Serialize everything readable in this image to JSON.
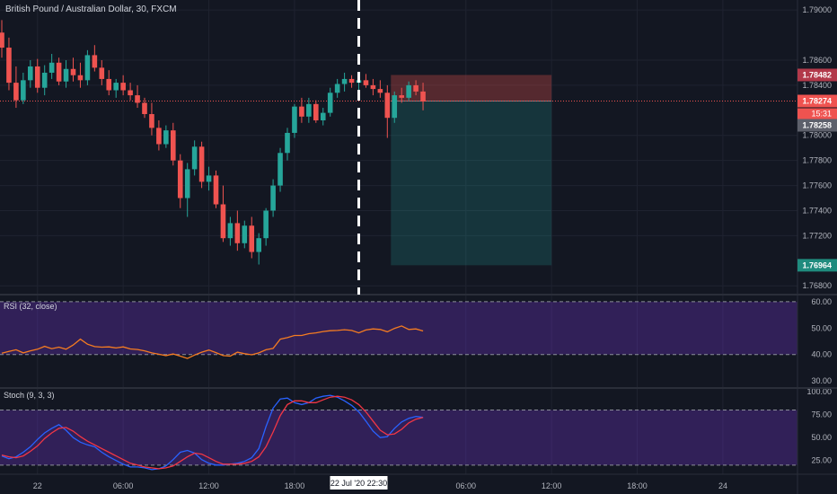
{
  "chart_data": {
    "type": "candlestick",
    "title": "British Pound / Australian Dollar, 30, FXCM",
    "symbol": "British Pound / Australian Dollar",
    "interval": "30",
    "exchange": "FXCM",
    "price_axis": {
      "ticks": [
        "1.79000",
        "1.78600",
        "1.78400",
        "1.78000",
        "1.77800",
        "1.77600",
        "1.77400",
        "1.77200",
        "1.76800"
      ],
      "range": [
        1.7673,
        1.7908
      ]
    },
    "time_axis": {
      "ticks": [
        {
          "label": "22",
          "slot": 5
        },
        {
          "label": "06:00",
          "slot": 17
        },
        {
          "label": "12:00",
          "slot": 29
        },
        {
          "label": "18:00",
          "slot": 41
        },
        {
          "label": "06:00",
          "slot": 65
        },
        {
          "label": "12:00",
          "slot": 77
        },
        {
          "label": "18:00",
          "slot": 89
        },
        {
          "label": "24",
          "slot": 101
        }
      ],
      "cursor_label": "22 Jul '20   22:30",
      "cursor_slot": 50
    },
    "candles": [
      [
        1.7882,
        1.7892,
        1.7862,
        1.787
      ],
      [
        1.787,
        1.7878,
        1.7836,
        1.7842
      ],
      [
        1.7842,
        1.7855,
        1.7822,
        1.7828
      ],
      [
        1.7828,
        1.785,
        1.7825,
        1.7844
      ],
      [
        1.7844,
        1.786,
        1.7838,
        1.7855
      ],
      [
        1.7855,
        1.7861,
        1.7834,
        1.7838
      ],
      [
        1.7838,
        1.7856,
        1.7832,
        1.785
      ],
      [
        1.785,
        1.7865,
        1.7845,
        1.7858
      ],
      [
        1.7858,
        1.7862,
        1.784,
        1.7843
      ],
      [
        1.7843,
        1.786,
        1.7838,
        1.7853
      ],
      [
        1.7853,
        1.7862,
        1.7843,
        1.7848
      ],
      [
        1.7848,
        1.7858,
        1.7838,
        1.7844
      ],
      [
        1.7844,
        1.7868,
        1.784,
        1.7864
      ],
      [
        1.7864,
        1.7872,
        1.7851,
        1.7854
      ],
      [
        1.7854,
        1.786,
        1.784,
        1.7845
      ],
      [
        1.7845,
        1.7852,
        1.7832,
        1.7836
      ],
      [
        1.7836,
        1.7845,
        1.783,
        1.7842
      ],
      [
        1.7842,
        1.7848,
        1.7832,
        1.7836
      ],
      [
        1.7836,
        1.7842,
        1.7828,
        1.7832
      ],
      [
        1.7832,
        1.784,
        1.7822,
        1.7826
      ],
      [
        1.7826,
        1.783,
        1.7814,
        1.7817
      ],
      [
        1.7817,
        1.7826,
        1.78,
        1.7806
      ],
      [
        1.7806,
        1.7812,
        1.7788,
        1.7793
      ],
      [
        1.7793,
        1.7808,
        1.779,
        1.7804
      ],
      [
        1.7804,
        1.781,
        1.7776,
        1.778
      ],
      [
        1.778,
        1.7785,
        1.7742,
        1.775
      ],
      [
        1.775,
        1.7778,
        1.7735,
        1.7773
      ],
      [
        1.7773,
        1.7796,
        1.7768,
        1.7791
      ],
      [
        1.7791,
        1.7795,
        1.7758,
        1.7763
      ],
      [
        1.7763,
        1.7775,
        1.7756,
        1.7768
      ],
      [
        1.7768,
        1.7772,
        1.7742,
        1.7745
      ],
      [
        1.7745,
        1.776,
        1.7715,
        1.7718
      ],
      [
        1.7718,
        1.7735,
        1.7712,
        1.773
      ],
      [
        1.773,
        1.774,
        1.7708,
        1.7714
      ],
      [
        1.7714,
        1.7732,
        1.771,
        1.7728
      ],
      [
        1.7728,
        1.7735,
        1.7702,
        1.7707
      ],
      [
        1.7707,
        1.7722,
        1.7697,
        1.7718
      ],
      [
        1.7718,
        1.7742,
        1.7712,
        1.774
      ],
      [
        1.774,
        1.7765,
        1.7735,
        1.776
      ],
      [
        1.776,
        1.779,
        1.7755,
        1.7786
      ],
      [
        1.7786,
        1.7806,
        1.778,
        1.7802
      ],
      [
        1.7802,
        1.7825,
        1.7798,
        1.7823
      ],
      [
        1.7823,
        1.783,
        1.781,
        1.7815
      ],
      [
        1.7815,
        1.783,
        1.781,
        1.7825
      ],
      [
        1.7825,
        1.7828,
        1.781,
        1.7812
      ],
      [
        1.7812,
        1.7822,
        1.7808,
        1.7818
      ],
      [
        1.7818,
        1.7838,
        1.7815,
        1.7834
      ],
      [
        1.7834,
        1.7845,
        1.783,
        1.7841
      ],
      [
        1.7841,
        1.785,
        1.7835,
        1.7845
      ],
      [
        1.7845,
        1.7848,
        1.7838,
        1.7842
      ],
      [
        1.7842,
        1.7848,
        1.7836,
        1.7844
      ],
      [
        1.7844,
        1.7849,
        1.7838,
        1.784
      ],
      [
        1.784,
        1.7845,
        1.7832,
        1.7837
      ],
      [
        1.7837,
        1.7844,
        1.783,
        1.7834
      ],
      [
        1.7834,
        1.784,
        1.7798,
        1.7814
      ],
      [
        1.7814,
        1.7835,
        1.781,
        1.7832
      ],
      [
        1.7832,
        1.7838,
        1.7826,
        1.783
      ],
      [
        1.783,
        1.7843,
        1.7828,
        1.784
      ],
      [
        1.784,
        1.7844,
        1.7832,
        1.7835
      ],
      [
        1.7835,
        1.7842,
        1.782,
        1.7827
      ]
    ],
    "last_price": "1.78274",
    "countdown": "15:31",
    "labels": {
      "stop": "1.78482",
      "target": "1.76964",
      "crosshair": "1.78258"
    },
    "position": {
      "type": "short",
      "entry": 1.78274,
      "stop": 1.78482,
      "target": 1.76964,
      "from_slot": 54.5,
      "to_slot": 77
    },
    "rsi": {
      "label": "RSI (32, close)",
      "ticks": [
        "60.00",
        "50.00",
        "40.00",
        "30.00"
      ],
      "range": [
        28,
        62
      ],
      "bands": [
        40,
        60
      ],
      "values": [
        40.5,
        41.2,
        41.8,
        40.6,
        41.4,
        42.0,
        43.1,
        42.2,
        42.8,
        42.0,
        43.6,
        45.8,
        43.9,
        43.0,
        42.8,
        42.9,
        42.5,
        42.9,
        42.1,
        41.9,
        41.4,
        40.6,
        40.1,
        39.6,
        40.2,
        39.4,
        38.5,
        39.8,
        40.9,
        41.7,
        40.7,
        39.6,
        39.4,
        40.9,
        40.3,
        39.9,
        40.6,
        41.8,
        42.3,
        45.8,
        46.4,
        47.2,
        47.2,
        47.9,
        48.2,
        48.7,
        49.0,
        49.1,
        49.4,
        49.1,
        48.2,
        49.3,
        49.7,
        49.5,
        48.6,
        49.9,
        50.8,
        49.5,
        49.7,
        48.9
      ],
      "series_color": "#f57c21"
    },
    "stoch": {
      "label": "Stoch (9, 3, 3)",
      "ticks": [
        "100.00",
        "75.00",
        "50.00",
        "25.00"
      ],
      "range": [
        12,
        102
      ],
      "bands": [
        20,
        80
      ],
      "k": [
        30,
        27,
        29,
        34,
        40,
        48,
        55,
        60,
        64,
        58,
        50,
        45,
        42,
        40,
        34,
        29,
        25,
        21,
        18,
        18,
        17,
        15,
        16,
        19,
        26,
        34,
        36,
        33,
        26,
        22,
        20,
        20,
        21,
        22,
        24,
        28,
        38,
        62,
        82,
        92,
        93,
        88,
        86,
        88,
        93,
        95,
        96,
        94,
        90,
        85,
        78,
        68,
        57,
        50,
        51,
        60,
        67,
        71,
        73,
        72
      ],
      "d": [
        31,
        29,
        28,
        30,
        35,
        41,
        49,
        55,
        60,
        61,
        57,
        51,
        46,
        42,
        38,
        34,
        30,
        26,
        22,
        20,
        18,
        17,
        16,
        17,
        19,
        24,
        29,
        33,
        32,
        28,
        24,
        21,
        21,
        21,
        22,
        24,
        29,
        40,
        56,
        74,
        86,
        90,
        90,
        88,
        88,
        91,
        94,
        95,
        94,
        91,
        86,
        78,
        68,
        58,
        53,
        54,
        59,
        66,
        70,
        72
      ],
      "k_color": "#2962ff",
      "d_color": "#f23645"
    },
    "colors": {
      "background": "#131722",
      "bull": "#26a69a",
      "bear": "#ef5350",
      "grid": "#1f2330",
      "axis_text": "#b2b5be",
      "band_fill": "rgba(118,52,216,0.30)"
    },
    "grid": true
  }
}
